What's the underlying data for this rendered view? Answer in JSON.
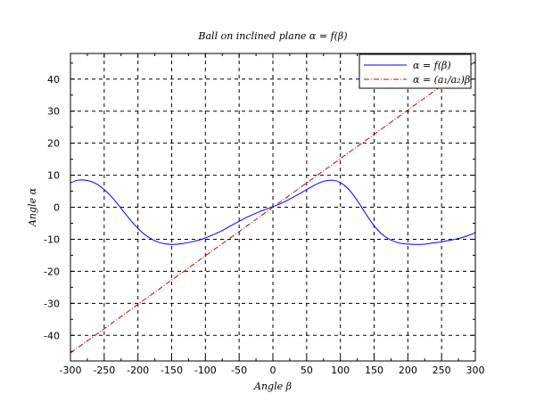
{
  "chart_data": {
    "type": "line",
    "title": "Ball on inclined plane α = f(β)",
    "xlabel": "Angle β",
    "ylabel": "Angle α",
    "xlim": [
      -300,
      300
    ],
    "ylim": [
      -48,
      48
    ],
    "grid": true,
    "legend_position": "top-right",
    "x_ticks": [
      -300,
      -250,
      -200,
      -150,
      -100,
      -50,
      0,
      50,
      100,
      150,
      200,
      250,
      300
    ],
    "x_tick_labels": [
      "-300",
      "-250",
      "-200",
      "-150",
      "-100",
      "-50",
      "0",
      "50",
      "100",
      "150",
      "200",
      "250",
      "300"
    ],
    "y_ticks": [
      -40,
      -30,
      -20,
      -10,
      0,
      10,
      20,
      30,
      40
    ],
    "y_tick_labels": [
      "-40",
      "-30",
      "-20",
      "-10",
      "0",
      "10",
      "20",
      "30",
      "40"
    ],
    "series": [
      {
        "name": "α = f(β)",
        "color": "#0000ff",
        "style": "solid",
        "x": [
          -300,
          -290,
          -280,
          -270,
          -260,
          -250,
          -240,
          -230,
          -220,
          -210,
          -200,
          -190,
          -180,
          -170,
          -160,
          -150,
          -140,
          -130,
          -120,
          -110,
          -100,
          -90,
          -80,
          -70,
          -60,
          -50,
          -40,
          -30,
          -20,
          -10,
          0,
          10,
          20,
          30,
          40,
          50,
          60,
          70,
          80,
          90,
          100,
          110,
          120,
          130,
          140,
          150,
          160,
          170,
          180,
          190,
          200,
          210,
          220,
          230,
          240,
          250,
          260,
          270,
          280,
          290,
          300
        ],
        "y": [
          7.6,
          8.4,
          8.5,
          8.1,
          7.1,
          5.5,
          3.5,
          1.0,
          -1.7,
          -4.3,
          -6.6,
          -8.5,
          -9.9,
          -10.9,
          -11.4,
          -11.6,
          -11.5,
          -11.2,
          -10.8,
          -10.3,
          -9.6,
          -8.7,
          -7.8,
          -6.7,
          -5.5,
          -4.4,
          -3.3,
          -2.3,
          -1.4,
          -0.6,
          0.2,
          1.0,
          2.0,
          3.1,
          4.3,
          5.5,
          6.7,
          7.7,
          8.3,
          8.4,
          7.7,
          6.1,
          3.6,
          0.5,
          -2.8,
          -5.8,
          -8.1,
          -9.7,
          -10.7,
          -11.3,
          -11.5,
          -11.6,
          -11.6,
          -11.4,
          -11.1,
          -10.8,
          -10.4,
          -10.0,
          -9.5,
          -8.8,
          -7.9
        ]
      },
      {
        "name": "α = (a₁/a₂)β",
        "color": "#cc0000",
        "style": "dash-dot",
        "x": [
          -300,
          300
        ],
        "y": [
          -45.5,
          45.5
        ]
      }
    ]
  }
}
